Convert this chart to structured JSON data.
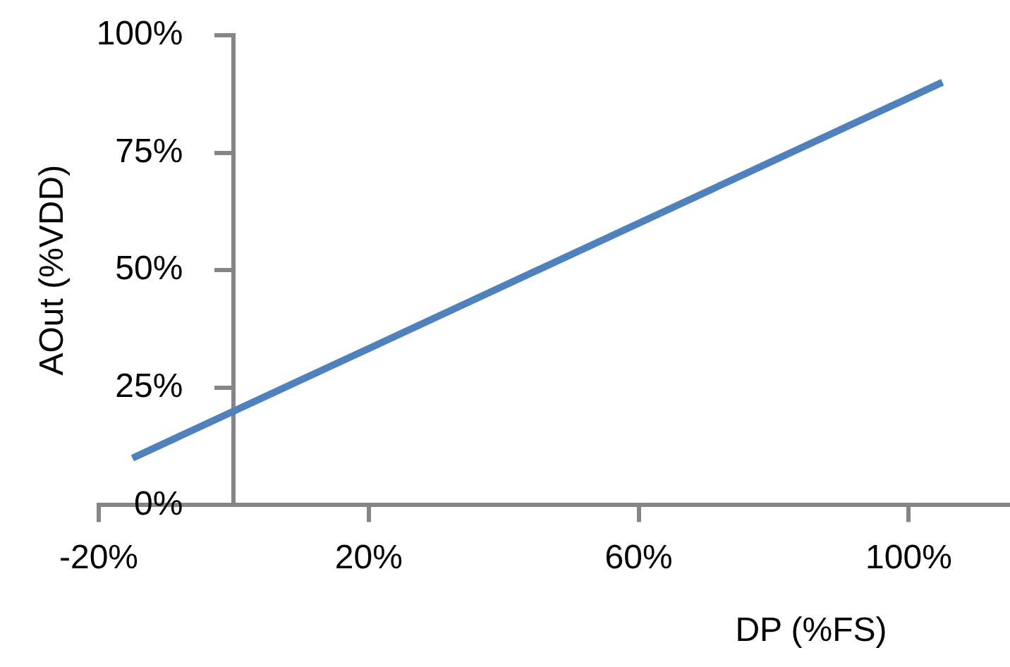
{
  "chart_data": {
    "type": "line",
    "xlabel": "DP (%FS)",
    "ylabel": "AOut (%VDD)",
    "xlim": [
      -20,
      115
    ],
    "xticks": [
      {
        "value": -20,
        "label": "-20%"
      },
      {
        "value": 20,
        "label": "20%"
      },
      {
        "value": 60,
        "label": "60%"
      },
      {
        "value": 100,
        "label": "100%"
      }
    ],
    "ylim": [
      0,
      100
    ],
    "yticks": [
      {
        "value": 0,
        "label": "0%"
      },
      {
        "value": 25,
        "label": "25%"
      },
      {
        "value": 50,
        "label": "50%"
      },
      {
        "value": 75,
        "label": "75%"
      },
      {
        "value": 100,
        "label": "100%"
      }
    ],
    "series": [
      {
        "color": "#4f81bd",
        "x": [
          -15,
          105
        ],
        "values": [
          10,
          90
        ]
      }
    ],
    "marker": "none",
    "legend": false
  }
}
